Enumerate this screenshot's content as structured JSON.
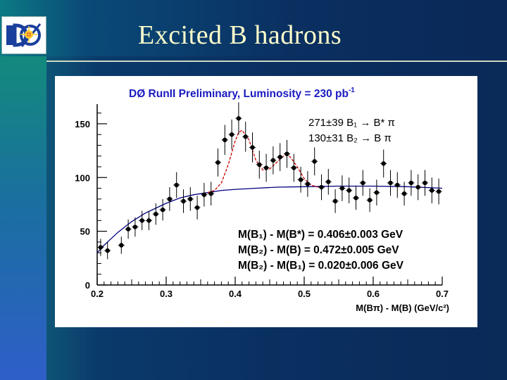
{
  "slide": {
    "title": "Excited B hadrons",
    "logo_label": "DØ"
  },
  "colors": {
    "background": "#0a2f60",
    "title_text": "#ffffcc",
    "fit_signal": "#cc0000",
    "fit_background": "#000080",
    "data_points": "#000000"
  },
  "chart_data": {
    "type": "scatter",
    "title": "DØ RunII  Preliminary, Luminosity = 230 pb",
    "title_superscript": "-1",
    "xlabel": "M(Bπ) - M(B) (GeV/c²)",
    "xlim": [
      0.2,
      0.7
    ],
    "ylim": [
      0,
      165
    ],
    "xticks": [
      "0.2",
      "0.3",
      "0.4",
      "0.5",
      "0.6",
      "0.7"
    ],
    "yticks": [
      "0",
      "50",
      "100",
      "150"
    ],
    "grid": false,
    "legend": {
      "line1": "271±39 B₁ → B* π",
      "line2": "130±31 B₂ → B π"
    },
    "annotations": [
      "M(B₁) - M(B*) = 0.406±0.003 GeV",
      "M(B₂) - M(B) = 0.472±0.005 GeV",
      "M(B₂) - M(B₁) = 0.020±0.006 GeV"
    ],
    "series": [
      {
        "kind": "points_with_errors",
        "x": [
          0.205,
          0.215,
          0.235,
          0.245,
          0.255,
          0.265,
          0.275,
          0.285,
          0.295,
          0.305,
          0.315,
          0.325,
          0.335,
          0.345,
          0.355,
          0.365,
          0.375,
          0.385,
          0.395,
          0.405,
          0.415,
          0.425,
          0.435,
          0.445,
          0.455,
          0.465,
          0.475,
          0.485,
          0.495,
          0.505,
          0.515,
          0.525,
          0.535,
          0.545,
          0.555,
          0.565,
          0.575,
          0.585,
          0.595,
          0.605,
          0.615,
          0.625,
          0.635,
          0.645,
          0.655,
          0.665,
          0.675,
          0.685,
          0.695
        ],
        "y": [
          35,
          32,
          37,
          52,
          54,
          60,
          60,
          66,
          70,
          80,
          93,
          78,
          80,
          72,
          84,
          85,
          114,
          135,
          140,
          155,
          138,
          128,
          112,
          109,
          116,
          119,
          122,
          109,
          98,
          94,
          115,
          91,
          96,
          78,
          90,
          88,
          81,
          95,
          79,
          86,
          113,
          95,
          93,
          85,
          95,
          91,
          95,
          88,
          87
        ],
        "err": [
          8,
          8,
          8,
          9,
          9,
          9,
          9,
          10,
          10,
          11,
          12,
          11,
          11,
          11,
          11,
          11,
          13,
          14,
          14,
          15,
          14,
          14,
          13,
          13,
          13,
          13,
          13,
          13,
          12,
          12,
          13,
          12,
          12,
          11,
          12,
          12,
          11,
          12,
          11,
          12,
          13,
          12,
          12,
          11,
          12,
          12,
          12,
          12,
          12
        ]
      },
      {
        "kind": "fit_background",
        "x": [
          0.2,
          0.21,
          0.22,
          0.23,
          0.24,
          0.25,
          0.26,
          0.27,
          0.28,
          0.29,
          0.3,
          0.32,
          0.34,
          0.36,
          0.38,
          0.4,
          0.43,
          0.46,
          0.5,
          0.55,
          0.6,
          0.65,
          0.7
        ],
        "y": [
          30,
          37,
          43,
          49,
          54,
          59,
          63,
          67,
          70,
          73,
          76,
          81,
          84,
          86,
          88,
          89,
          90,
          91,
          91.5,
          92,
          92,
          91.5,
          90
        ]
      },
      {
        "kind": "fit_signal",
        "x": [
          0.36,
          0.37,
          0.38,
          0.39,
          0.4,
          0.405,
          0.41,
          0.42,
          0.43,
          0.44,
          0.45,
          0.46,
          0.47,
          0.475,
          0.48,
          0.49,
          0.5,
          0.51,
          0.52
        ],
        "y": [
          86,
          88,
          95,
          112,
          134,
          142,
          144,
          135,
          116,
          107,
          108,
          114,
          120,
          121,
          119,
          110,
          99,
          93,
          91
        ]
      }
    ]
  }
}
